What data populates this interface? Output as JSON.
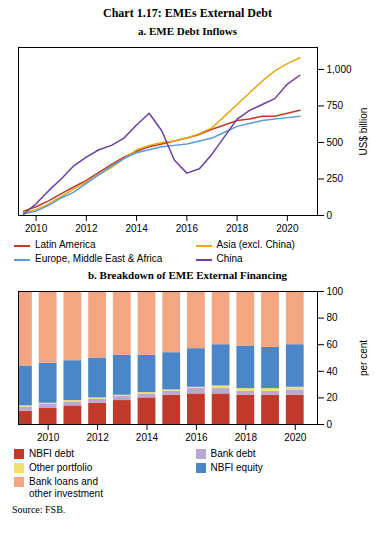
{
  "title": "Chart 1.17: EMEs External Debt",
  "annotations": [
    "Source: FSB."
  ],
  "chart_data": [
    {
      "type": "line",
      "title": "a. EME Debt Inflows",
      "y_label": "US$ billion",
      "x": [
        2009.5,
        2010,
        2010.5,
        2011,
        2011.5,
        2012,
        2012.5,
        2013,
        2013.5,
        2014,
        2014.5,
        2015,
        2015.5,
        2016,
        2016.5,
        2017,
        2017.5,
        2018,
        2018.5,
        2019,
        2019.5,
        2020,
        2020.5
      ],
      "xlim": [
        2009.3,
        2021.2
      ],
      "xticks": [
        2010,
        2012,
        2014,
        2016,
        2018,
        2020
      ],
      "ylim": [
        0,
        1150
      ],
      "yticks": [
        0,
        250,
        500,
        750,
        {
          "value": 1000,
          "label": "1,000"
        }
      ],
      "grid": false,
      "legend": "bottom",
      "series": [
        {
          "name": "Latin America",
          "color": "#c0392b",
          "values": [
            30,
            60,
            100,
            150,
            195,
            240,
            295,
            350,
            400,
            440,
            470,
            490,
            510,
            530,
            555,
            590,
            620,
            650,
            660,
            680,
            680,
            700,
            720
          ]
        },
        {
          "name": "Asia (excl. China)",
          "color": "#e6a817",
          "values": [
            20,
            40,
            80,
            130,
            180,
            230,
            280,
            330,
            390,
            450,
            480,
            500,
            510,
            530,
            560,
            600,
            680,
            760,
            840,
            920,
            990,
            1040,
            1080
          ]
        },
        {
          "name": "Europe, Middle East & Africa",
          "color": "#5b9bd5",
          "values": [
            10,
            30,
            70,
            120,
            160,
            220,
            280,
            340,
            390,
            430,
            450,
            470,
            480,
            490,
            510,
            530,
            570,
            610,
            630,
            650,
            660,
            670,
            680
          ]
        },
        {
          "name": "China",
          "color": "#6b3fa0",
          "values": [
            10,
            80,
            170,
            250,
            340,
            400,
            450,
            480,
            530,
            620,
            700,
            580,
            380,
            290,
            320,
            420,
            540,
            660,
            720,
            760,
            800,
            900,
            960
          ]
        }
      ]
    },
    {
      "type": "bar",
      "stacked": true,
      "title": "b. Breakdown of EME External Financing",
      "y_label": "per cent",
      "x": [
        2009,
        2010,
        2011,
        2012,
        2013,
        2014,
        2015,
        2016,
        2017,
        2018,
        2019,
        2020
      ],
      "xlim": [
        2008.8,
        2020.9
      ],
      "xticks": [
        2010,
        2012,
        2014,
        2016,
        2018,
        2020
      ],
      "ylim": [
        0,
        100
      ],
      "yticks": [
        0,
        20,
        40,
        60,
        80,
        100
      ],
      "grid": false,
      "legend": "bottom",
      "series": [
        {
          "name": "NBFI debt",
          "color": "#c0392b",
          "values": [
            10,
            12,
            14,
            16,
            18,
            20,
            22,
            23,
            23,
            22,
            22,
            22
          ]
        },
        {
          "name": "Bank debt",
          "color": "#b8a9d0",
          "values": [
            3,
            3,
            3,
            3,
            3,
            3,
            3,
            4,
            4,
            3,
            3,
            4
          ]
        },
        {
          "name": "Other portfolio",
          "color": "#f0e070",
          "values": [
            1,
            1,
            1,
            1,
            1,
            1,
            1,
            1,
            2,
            2,
            2,
            2
          ]
        },
        {
          "name": "NBFI equity",
          "color": "#4a86c8",
          "values": [
            30,
            30,
            30,
            30,
            30,
            28,
            28,
            29,
            31,
            32,
            31,
            32
          ]
        },
        {
          "name": "Bank loans and\nother investment",
          "color": "#f4a582",
          "values": [
            56,
            54,
            52,
            50,
            48,
            48,
            46,
            43,
            40,
            41,
            42,
            40
          ]
        }
      ]
    }
  ]
}
